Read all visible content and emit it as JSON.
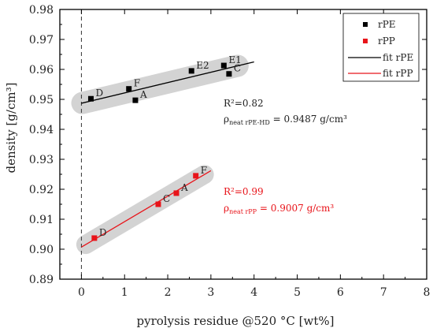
{
  "chart_data": {
    "type": "scatter",
    "title": "",
    "xlabel": "pyrolysis residue @520 °C [wt%]",
    "ylabel": "density [g/cm³]",
    "xlim": [
      -0.5,
      8
    ],
    "ylim": [
      0.89,
      0.98
    ],
    "x_ticks": [
      "0",
      "1",
      "2",
      "3",
      "4",
      "5",
      "6",
      "7",
      "8"
    ],
    "y_ticks": [
      "0.89",
      "0.90",
      "0.91",
      "0.92",
      "0.93",
      "0.94",
      "0.95",
      "0.96",
      "0.97",
      "0.98"
    ],
    "grid": false,
    "reference_line_x": 0,
    "legend": {
      "position": "top-right",
      "entries": [
        "rPE",
        "rPP",
        "fit rPE",
        "fit rPP"
      ]
    },
    "series": [
      {
        "name": "rPE",
        "color": "#000000",
        "points": [
          {
            "label": "D",
            "x": 0.22,
            "y": 0.9502
          },
          {
            "label": "F",
            "x": 1.1,
            "y": 0.9535
          },
          {
            "label": "A",
            "x": 1.25,
            "y": 0.9497
          },
          {
            "label": "E2",
            "x": 2.55,
            "y": 0.9595
          },
          {
            "label": "E1",
            "x": 3.3,
            "y": 0.9613
          },
          {
            "label": "C",
            "x": 3.42,
            "y": 0.9585
          }
        ],
        "fit": {
          "name": "fit rPE",
          "x": [
            0,
            4
          ],
          "y": [
            0.9487,
            0.9625
          ]
        }
      },
      {
        "name": "rPP",
        "color": "#e8141a",
        "points": [
          {
            "label": "D",
            "x": 0.3,
            "y": 0.9037
          },
          {
            "label": "C",
            "x": 1.78,
            "y": 0.915
          },
          {
            "label": "A",
            "x": 2.2,
            "y": 0.9187
          },
          {
            "label": "F",
            "x": 2.65,
            "y": 0.9245
          }
        ],
        "fit": {
          "name": "fit rPP",
          "x": [
            0,
            3
          ],
          "y": [
            0.9007,
            0.9262
          ]
        }
      }
    ],
    "annotations": {
      "rpe_r2": "R²=0.82",
      "rpe_rho_symbol": "ρ",
      "rpe_rho_sub": "neat rPE-HD",
      "rpe_rho_value": " = 0.9487 g/cm³",
      "rpp_r2": "R²=0.99",
      "rpp_rho_symbol": "ρ",
      "rpp_rho_sub": "neat rPP",
      "rpp_rho_value": " = 0.9007 g/cm³"
    }
  }
}
